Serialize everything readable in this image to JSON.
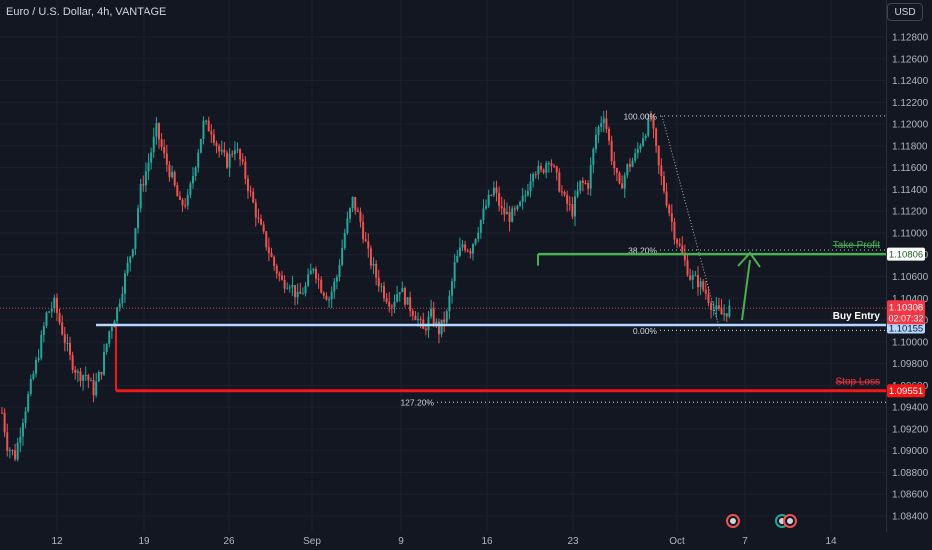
{
  "header": {
    "title": "Euro / U.S. Dollar, 4h, VANTAGE",
    "currency_button": "USD"
  },
  "colors": {
    "background": "#131722",
    "up": "#26a69a",
    "down": "#ef5350",
    "axis_text": "#b2b5be",
    "take_profit": "#4caf50",
    "stop_loss": "#f21818",
    "entry": "#b3d7ff",
    "fib": "#b2b5be"
  },
  "chart_data": {
    "type": "candlestick",
    "y_axis": {
      "ticks": [
        "1.12800",
        "1.12600",
        "1.12400",
        "1.12200",
        "1.12000",
        "1.11800",
        "1.11600",
        "1.11400",
        "1.11200",
        "1.11000",
        "1.10800",
        "1.10600",
        "1.10400",
        "1.10200",
        "1.10000",
        "1.09800",
        "1.09600",
        "1.09400",
        "1.09200",
        "1.09000",
        "1.08800",
        "1.08600",
        "1.08400"
      ],
      "ylim": [
        1.0833,
        1.1296
      ]
    },
    "x_axis": {
      "ticks": [
        "12",
        "19",
        "26",
        "Sep",
        "9",
        "16",
        "23",
        "Oct",
        "7",
        "14"
      ]
    },
    "price_path": [
      [
        1.0935,
        1.095
      ],
      [
        1.0945,
        1.0905
      ],
      [
        1.092,
        1.0895
      ],
      [
        1.0915,
        1.093
      ],
      [
        1.094,
        1.096
      ],
      [
        1.0955,
        1.099
      ],
      [
        1.0998,
        1.1025
      ],
      [
        1.101,
        1.1035
      ],
      [
        1.1015,
        1.101
      ],
      [
        1.1005,
        1.0985
      ],
      [
        1.0995,
        1.097
      ],
      [
        1.098,
        1.097
      ],
      [
        1.0965,
        1.0955
      ],
      [
        1.096,
        1.0975
      ],
      [
        1.0985,
        1.101
      ],
      [
        1.102,
        1.103
      ],
      [
        1.1045,
        1.106
      ],
      [
        1.107,
        1.109
      ],
      [
        1.112,
        1.114
      ],
      [
        1.116,
        1.1165
      ],
      [
        1.118,
        1.1195
      ],
      [
        1.118,
        1.117
      ],
      [
        1.116,
        1.115
      ],
      [
        1.1145,
        1.1125
      ],
      [
        1.112,
        1.113
      ],
      [
        1.114,
        1.1165
      ],
      [
        1.119,
        1.12
      ],
      [
        1.1205,
        1.1195
      ],
      [
        1.1185,
        1.1175
      ],
      [
        1.117,
        1.1165
      ],
      [
        1.1175,
        1.118
      ],
      [
        1.117,
        1.116
      ],
      [
        1.115,
        1.1135
      ],
      [
        1.112,
        1.111
      ],
      [
        1.1105,
        1.109
      ],
      [
        1.108,
        1.107
      ],
      [
        1.106,
        1.1055
      ],
      [
        1.106,
        1.1055
      ],
      [
        1.105,
        1.104
      ],
      [
        1.1045,
        1.105
      ],
      [
        1.106,
        1.107
      ],
      [
        1.106,
        1.105
      ],
      [
        1.1045,
        1.104
      ],
      [
        1.105,
        1.106
      ],
      [
        1.108,
        1.11
      ],
      [
        1.112,
        1.113
      ],
      [
        1.1125,
        1.111
      ],
      [
        1.1095,
        1.108
      ],
      [
        1.1075,
        1.106
      ],
      [
        1.1055,
        1.1045
      ],
      [
        1.104,
        1.1035
      ],
      [
        1.104,
        1.105
      ],
      [
        1.1045,
        1.1035
      ],
      [
        1.103,
        1.1025
      ],
      [
        1.102,
        1.101
      ],
      [
        1.1015,
        1.1025
      ],
      [
        1.102,
        1.101
      ],
      [
        1.1015,
        1.1025
      ],
      [
        1.1045,
        1.107
      ],
      [
        1.108,
        1.109
      ],
      [
        1.1095,
        1.1085
      ],
      [
        1.109,
        1.1105
      ],
      [
        1.1115,
        1.1125
      ],
      [
        1.1135,
        1.114
      ],
      [
        1.1135,
        1.112
      ],
      [
        1.1125,
        1.1115
      ],
      [
        1.111,
        1.112
      ],
      [
        1.1125,
        1.1135
      ],
      [
        1.115,
        1.116
      ],
      [
        1.1165,
        1.1155
      ],
      [
        1.1165,
        1.117
      ],
      [
        1.116,
        1.115
      ],
      [
        1.114,
        1.113
      ],
      [
        1.1125,
        1.112
      ],
      [
        1.113,
        1.1145
      ],
      [
        1.115,
        1.1145
      ],
      [
        1.117,
        1.119
      ],
      [
        1.12,
        1.121
      ],
      [
        1.119,
        1.117
      ],
      [
        1.116,
        1.114
      ],
      [
        1.1145,
        1.116
      ],
      [
        1.118,
        1.117
      ],
      [
        1.1175,
        1.119
      ],
      [
        1.12,
        1.1205
      ],
      [
        1.118,
        1.116
      ],
      [
        1.115,
        1.113
      ],
      [
        1.112,
        1.11
      ],
      [
        1.109,
        1.108
      ],
      [
        1.107,
        1.106
      ],
      [
        1.1065,
        1.1055
      ],
      [
        1.105,
        1.1045
      ],
      [
        1.104,
        1.103
      ],
      [
        1.1035,
        1.1025
      ],
      [
        1.103,
        1.103
      ]
    ],
    "levels": [
      {
        "label": "Take Profit",
        "value": 1.10806,
        "price_label": "1.10806"
      },
      {
        "label": "Buy Entry",
        "value": 1.10155,
        "price_label": "1.10155"
      },
      {
        "label": "Stop Loss",
        "value": 1.09551,
        "price_label": "1.09551"
      }
    ],
    "current_price": {
      "value": 1.10308,
      "label": "1.10308",
      "countdown": "02:07:32"
    },
    "fib": [
      {
        "label": "100.00%",
        "value": 1.12075
      },
      {
        "label": "38.20%",
        "value": 1.10843
      },
      {
        "label": "0.00%",
        "value": 1.10105
      },
      {
        "label": "127.20%",
        "value": 1.09445
      }
    ]
  }
}
